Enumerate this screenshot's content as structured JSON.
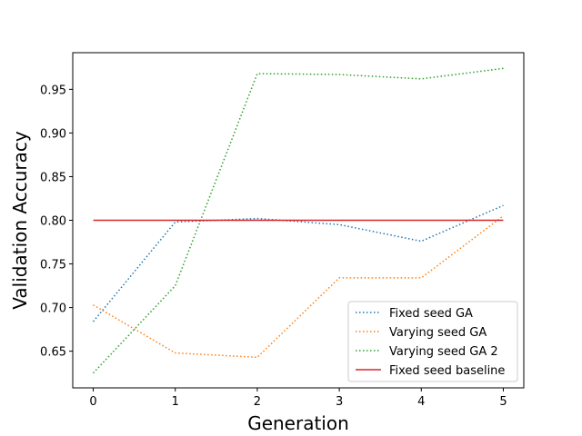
{
  "chart_data": {
    "type": "line",
    "title": "",
    "xlabel": "Generation",
    "ylabel": "Validation Accuracy",
    "x": [
      0,
      1,
      2,
      3,
      4,
      5
    ],
    "xlim": [
      -0.25,
      5.25
    ],
    "ylim": [
      0.608,
      0.992
    ],
    "xticks": [
      0,
      1,
      2,
      3,
      4,
      5
    ],
    "yticks": [
      0.65,
      0.7,
      0.75,
      0.8,
      0.85,
      0.9,
      0.95
    ],
    "ytick_labels": [
      "0.65",
      "0.70",
      "0.75",
      "0.80",
      "0.85",
      "0.90",
      "0.95"
    ],
    "grid": false,
    "legend_position": "lower-right",
    "series": [
      {
        "name": "Fixed seed GA",
        "values": [
          0.684,
          0.798,
          0.802,
          0.795,
          0.776,
          0.817
        ],
        "color": "#1f77b4",
        "style": "dotted"
      },
      {
        "name": "Varying seed GA",
        "values": [
          0.703,
          0.648,
          0.643,
          0.734,
          0.734,
          0.805
        ],
        "color": "#ff7f0e",
        "style": "dotted"
      },
      {
        "name": "Varying seed GA 2",
        "values": [
          0.625,
          0.725,
          0.968,
          0.967,
          0.962,
          0.974
        ],
        "color": "#2ca02c",
        "style": "dotted"
      },
      {
        "name": "Fixed seed baseline",
        "values": [
          0.8,
          0.8,
          0.8,
          0.8,
          0.8,
          0.8
        ],
        "color": "#d62728",
        "style": "solid"
      }
    ]
  }
}
